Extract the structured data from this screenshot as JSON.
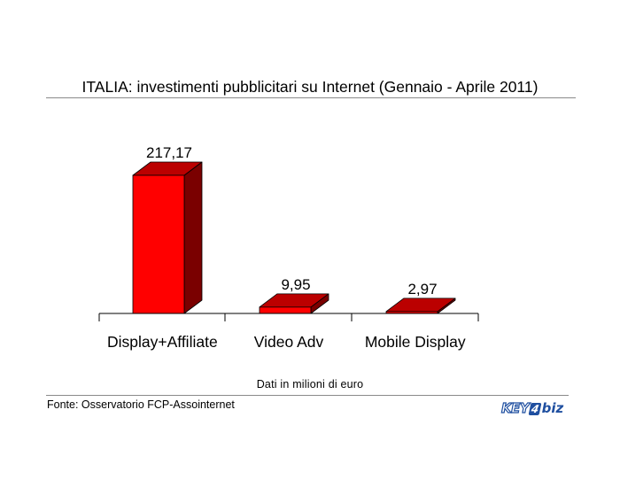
{
  "chart_data": {
    "type": "bar",
    "title": "ITALIA: investimenti pubblicitari su Internet (Gennaio - Aprile 2011)",
    "categories": [
      "Display+Affiliate",
      "Video Adv",
      "Mobile Display"
    ],
    "values": [
      217.17,
      9.95,
      2.97
    ],
    "value_labels": [
      "217,17",
      "9,95",
      "2,97"
    ],
    "xlabel": "",
    "ylabel": "",
    "ylim": [
      0,
      217.17
    ],
    "grid": false,
    "legend": "none",
    "style": "3d-column",
    "colors": {
      "front": "#ff0000",
      "top": "#bb0000",
      "side": "#7a0000"
    }
  },
  "note": "Dati in milioni di euro",
  "source": "Fonte: Osservatorio FCP-Assointernet",
  "logo": {
    "text": "KEY4biz",
    "part1": "KEY",
    "part2": "4",
    "part3": "biz",
    "color": "#1f4fa0"
  }
}
